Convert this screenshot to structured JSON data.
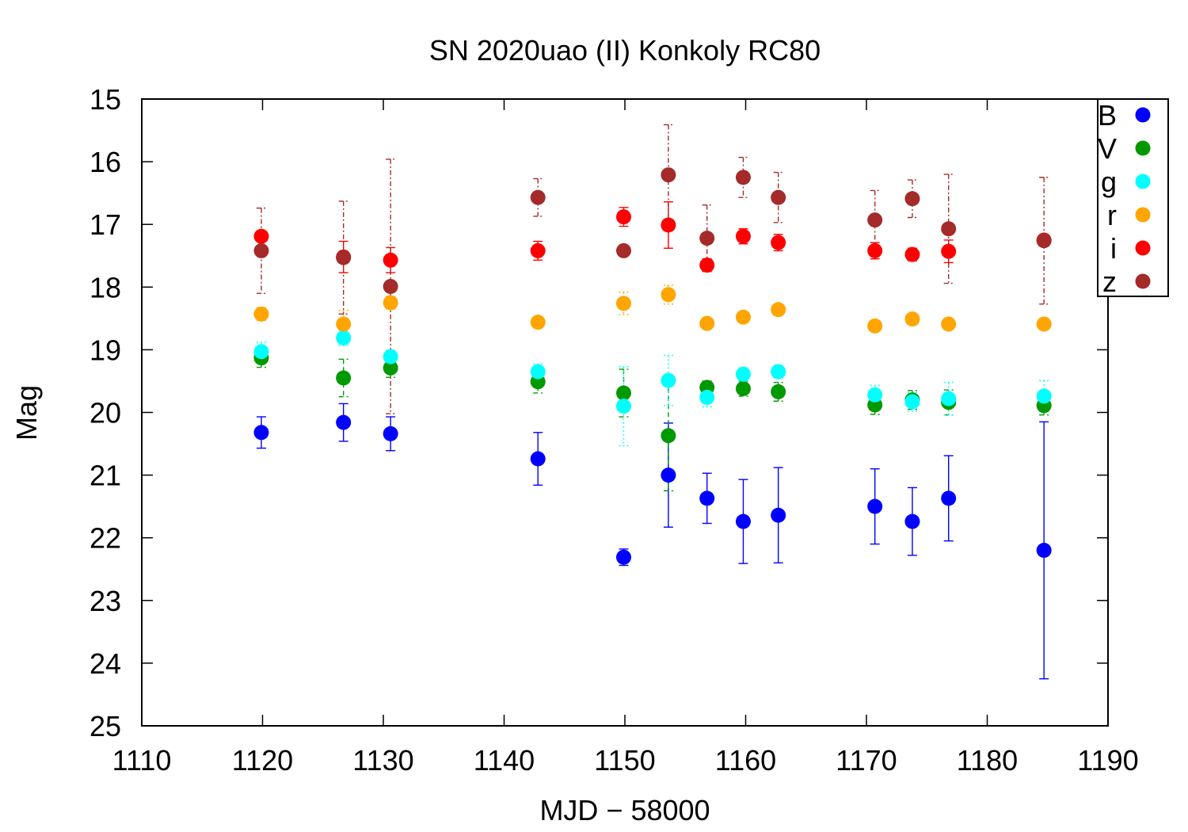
{
  "chart_data": {
    "type": "scatter",
    "title": "SN 2020uao (II) Konkoly RC80",
    "xlabel": "MJD − 58000",
    "ylabel": "Mag",
    "xlim": [
      1110,
      1190
    ],
    "ylim": [
      25,
      15
    ],
    "y_inverted": true,
    "xticks": [
      1110,
      1120,
      1130,
      1140,
      1150,
      1160,
      1170,
      1180,
      1190
    ],
    "yticks": [
      15,
      16,
      17,
      18,
      19,
      20,
      21,
      22,
      23,
      24,
      25
    ],
    "legend_position": "top-right",
    "grid": false,
    "series": [
      {
        "name": "B",
        "color": "#0000ff",
        "errorbar_style": "solid",
        "points": [
          {
            "x": 1119.9,
            "y": 20.32,
            "err": 0.25
          },
          {
            "x": 1126.7,
            "y": 20.16,
            "err": 0.3
          },
          {
            "x": 1130.6,
            "y": 20.34,
            "err": 0.27
          },
          {
            "x": 1142.8,
            "y": 20.74,
            "err": 0.42
          },
          {
            "x": 1149.9,
            "y": 22.31,
            "err": 0.13
          },
          {
            "x": 1153.6,
            "y": 21.0,
            "err": 0.83
          },
          {
            "x": 1156.8,
            "y": 21.37,
            "err": 0.4
          },
          {
            "x": 1159.8,
            "y": 21.74,
            "err": 0.67
          },
          {
            "x": 1162.7,
            "y": 21.64,
            "err": 0.76
          },
          {
            "x": 1170.7,
            "y": 21.5,
            "err": 0.6
          },
          {
            "x": 1173.8,
            "y": 21.74,
            "err": 0.54
          },
          {
            "x": 1176.8,
            "y": 21.37,
            "err": 0.68
          },
          {
            "x": 1184.7,
            "y": 22.2,
            "err": 2.05
          }
        ]
      },
      {
        "name": "V",
        "color": "#009900",
        "errorbar_style": "dashed",
        "points": [
          {
            "x": 1119.9,
            "y": 19.13,
            "err": 0.15
          },
          {
            "x": 1126.7,
            "y": 19.45,
            "err": 0.3
          },
          {
            "x": 1130.6,
            "y": 19.29,
            "err": 0.15
          },
          {
            "x": 1142.8,
            "y": 19.51,
            "err": 0.18
          },
          {
            "x": 1149.9,
            "y": 19.69,
            "err": 0.38
          },
          {
            "x": 1153.6,
            "y": 20.37,
            "err": 0.88
          },
          {
            "x": 1156.8,
            "y": 19.6,
            "err": 0.1
          },
          {
            "x": 1159.8,
            "y": 19.62,
            "err": 0.12
          },
          {
            "x": 1162.7,
            "y": 19.67,
            "err": 0.15
          },
          {
            "x": 1170.7,
            "y": 19.88,
            "err": 0.15
          },
          {
            "x": 1173.8,
            "y": 19.8,
            "err": 0.15
          },
          {
            "x": 1176.8,
            "y": 19.84,
            "err": 0.2
          },
          {
            "x": 1184.7,
            "y": 19.89,
            "err": 0.15
          }
        ]
      },
      {
        "name": "g",
        "color": "#00ffff",
        "errorbar_style": "dotted",
        "points": [
          {
            "x": 1119.9,
            "y": 19.03,
            "err": 0.15
          },
          {
            "x": 1126.7,
            "y": 18.81,
            "err": 0.12
          },
          {
            "x": 1130.6,
            "y": 19.11,
            "err": 0.1
          },
          {
            "x": 1142.8,
            "y": 19.35,
            "err": 0.12
          },
          {
            "x": 1149.9,
            "y": 19.9,
            "err": 0.63
          },
          {
            "x": 1153.6,
            "y": 19.49,
            "err": 0.4
          },
          {
            "x": 1156.8,
            "y": 19.76,
            "err": 0.15
          },
          {
            "x": 1159.8,
            "y": 19.39,
            "err": 0.1
          },
          {
            "x": 1162.7,
            "y": 19.35,
            "err": 0.1
          },
          {
            "x": 1170.7,
            "y": 19.72,
            "err": 0.15
          },
          {
            "x": 1173.8,
            "y": 19.83,
            "err": 0.15
          },
          {
            "x": 1176.8,
            "y": 19.78,
            "err": 0.26
          },
          {
            "x": 1184.7,
            "y": 19.74,
            "err": 0.25
          }
        ]
      },
      {
        "name": "r",
        "color": "#ffa500",
        "errorbar_style": "dotted",
        "points": [
          {
            "x": 1119.9,
            "y": 18.43,
            "err": 0.1
          },
          {
            "x": 1126.7,
            "y": 18.59,
            "err": 0.22
          },
          {
            "x": 1130.6,
            "y": 18.25,
            "err": 0.1
          },
          {
            "x": 1142.8,
            "y": 18.56,
            "err": 0.08
          },
          {
            "x": 1149.9,
            "y": 18.26,
            "err": 0.18
          },
          {
            "x": 1153.6,
            "y": 18.12,
            "err": 0.15
          },
          {
            "x": 1156.8,
            "y": 18.58,
            "err": 0.08
          },
          {
            "x": 1159.8,
            "y": 18.48,
            "err": 0.08
          },
          {
            "x": 1162.7,
            "y": 18.36,
            "err": 0.08
          },
          {
            "x": 1170.7,
            "y": 18.62,
            "err": 0.08
          },
          {
            "x": 1173.8,
            "y": 18.51,
            "err": 0.08
          },
          {
            "x": 1176.8,
            "y": 18.59,
            "err": 0.08
          },
          {
            "x": 1184.7,
            "y": 18.59,
            "err": 0.08
          }
        ]
      },
      {
        "name": "i",
        "color": "#ff0000",
        "errorbar_style": "solid",
        "points": [
          {
            "x": 1119.9,
            "y": 17.19,
            "err": 0.05
          },
          {
            "x": 1126.7,
            "y": 17.52,
            "err": 0.25
          },
          {
            "x": 1130.6,
            "y": 17.57,
            "err": 0.2
          },
          {
            "x": 1142.8,
            "y": 17.42,
            "err": 0.15
          },
          {
            "x": 1149.9,
            "y": 16.88,
            "err": 0.15
          },
          {
            "x": 1153.6,
            "y": 17.01,
            "err": 0.37
          },
          {
            "x": 1156.8,
            "y": 17.65,
            "err": 0.1
          },
          {
            "x": 1159.8,
            "y": 17.19,
            "err": 0.12
          },
          {
            "x": 1162.7,
            "y": 17.29,
            "err": 0.13
          },
          {
            "x": 1170.7,
            "y": 17.42,
            "err": 0.13
          },
          {
            "x": 1173.8,
            "y": 17.48,
            "err": 0.1
          },
          {
            "x": 1176.8,
            "y": 17.43,
            "err": 0.18
          },
          {
            "x": 1184.7,
            "y": 17.25,
            "err": 0.05
          }
        ]
      },
      {
        "name": "z",
        "color": "#a52a2a",
        "errorbar_style": "dashdot",
        "points": [
          {
            "x": 1119.9,
            "y": 17.42,
            "err": 0.68
          },
          {
            "x": 1126.7,
            "y": 17.53,
            "err": 0.9
          },
          {
            "x": 1130.6,
            "y": 17.99,
            "err": 2.03
          },
          {
            "x": 1142.8,
            "y": 16.57,
            "err": 0.3
          },
          {
            "x": 1149.9,
            "y": 17.42,
            "err": 0.05
          },
          {
            "x": 1153.6,
            "y": 16.21,
            "err": 0.8
          },
          {
            "x": 1156.8,
            "y": 17.22,
            "err": 0.53
          },
          {
            "x": 1159.8,
            "y": 16.25,
            "err": 0.32
          },
          {
            "x": 1162.7,
            "y": 16.57,
            "err": 0.4
          },
          {
            "x": 1170.7,
            "y": 16.93,
            "err": 0.47
          },
          {
            "x": 1173.8,
            "y": 16.59,
            "err": 0.3
          },
          {
            "x": 1176.8,
            "y": 17.07,
            "err": 0.87
          },
          {
            "x": 1184.7,
            "y": 17.26,
            "err": 1.01
          }
        ]
      }
    ]
  }
}
